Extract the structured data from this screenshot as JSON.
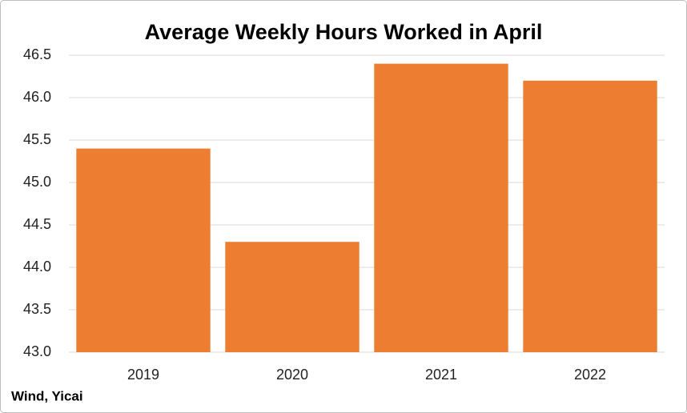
{
  "chart_data": {
    "type": "bar",
    "title": "Average Weekly Hours Worked in April",
    "categories": [
      "2019",
      "2020",
      "2021",
      "2022"
    ],
    "values": [
      45.4,
      44.3,
      46.4,
      46.2
    ],
    "color": "#ed7d31",
    "ylim": [
      43,
      46.5
    ],
    "yticks": [
      {
        "value": 43,
        "label": "43.0"
      },
      43.5,
      {
        "value": 44,
        "label": "44.0"
      },
      44.5,
      {
        "value": 45,
        "label": "45.0"
      },
      45.5,
      {
        "value": 46,
        "label": "46.0"
      },
      46.5
    ],
    "grid": true,
    "source": "Wind, Yicai"
  }
}
